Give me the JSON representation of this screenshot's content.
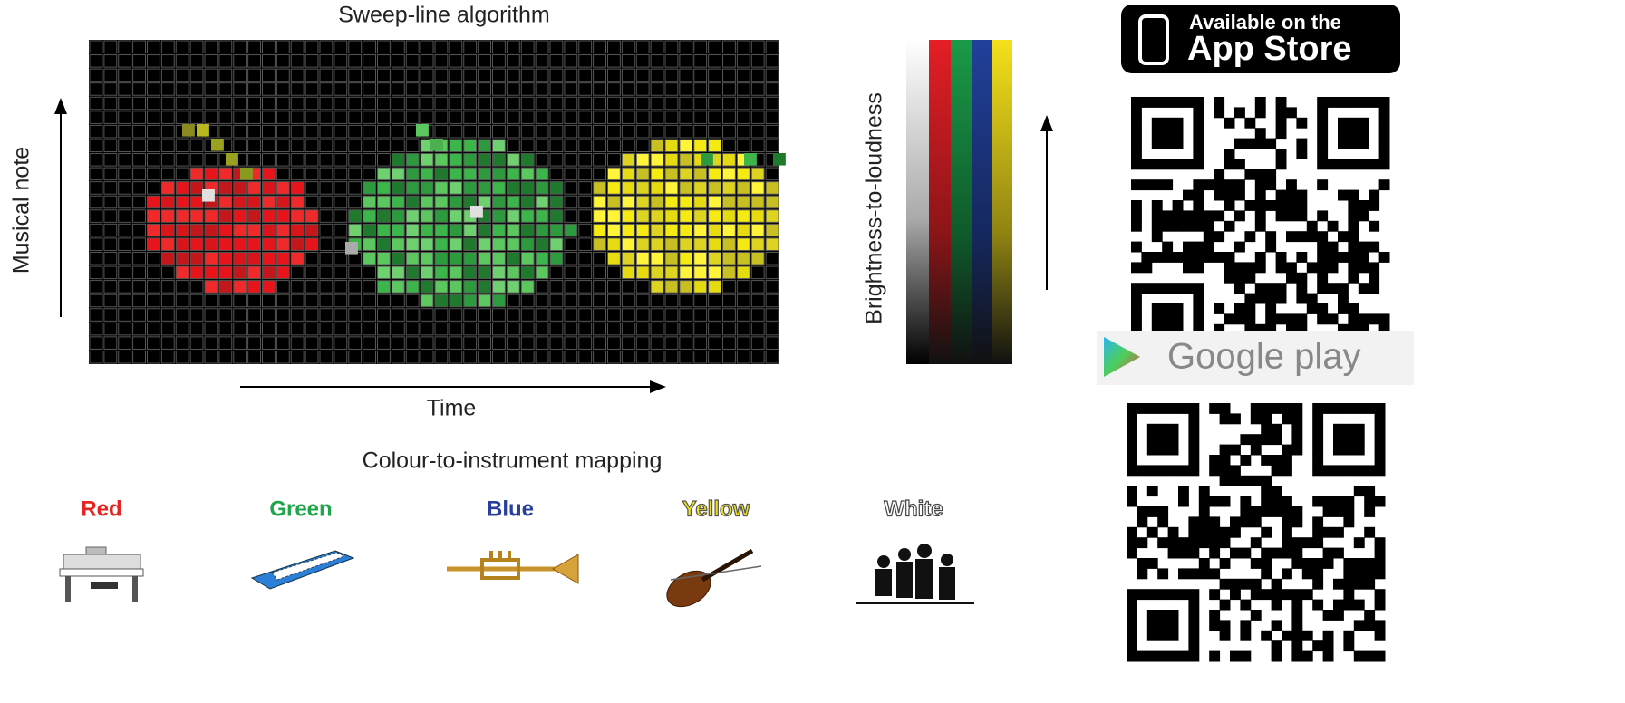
{
  "figure": {
    "title": "Sweep-line algorithm",
    "y_axis_label": "Musical note",
    "x_axis_label": "Time",
    "bar_label": "Brightness-to-loudness",
    "mapping_title": "Colour-to-instrument mapping",
    "colours": [
      "Red",
      "Green",
      "Blue",
      "Yellow",
      "White"
    ]
  },
  "badges": {
    "app_store_line1": "Available on the",
    "app_store_line2": "App Store",
    "google_play": "Google play"
  }
}
